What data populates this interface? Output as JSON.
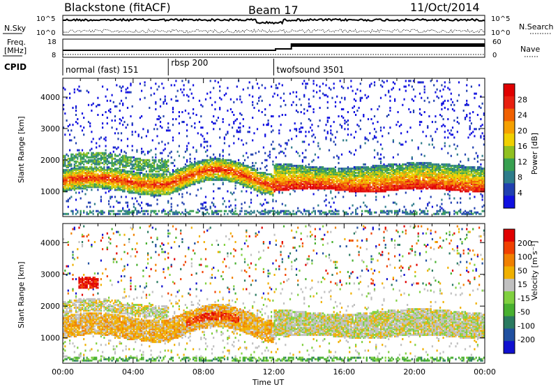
{
  "header": {
    "station": "Blackstone (fitACF)",
    "beam": "Beam 17",
    "date": "11/Oct/2014"
  },
  "left_labels": {
    "nsky": "N.Sky",
    "freq_line1": "Freq.",
    "freq_line2": "[MHz]",
    "cpid": "CPID"
  },
  "right_labels": {
    "nsearch": "N.Search",
    "nave": "Nave"
  },
  "noise_panel": {
    "left_ticks": [
      "10^5",
      "10^0"
    ],
    "right_ticks": [
      "10^5",
      "10^0"
    ]
  },
  "freq_panel": {
    "left_ticks": [
      "18",
      "8"
    ],
    "right_ticks": [
      "60",
      "0"
    ]
  },
  "cpid_panel": {
    "modes": [
      {
        "label": "normal (fast) 151",
        "start_hour": 0
      },
      {
        "label": "rbsp 200",
        "start_hour": 6
      },
      {
        "label": "twofsound 3501",
        "start_hour": 12
      }
    ]
  },
  "chart_data": [
    {
      "type": "heatmap",
      "name": "power-panel",
      "ylabel": "Slant Range [km]",
      "ylim": [
        200,
        4600
      ],
      "yticks": [
        "1000",
        "2000",
        "3000",
        "4000"
      ],
      "xlim": [
        0,
        24
      ],
      "colorbar": {
        "label": "Power [dB]",
        "ticks": [
          "4",
          "8",
          "12",
          "16",
          "20",
          "24",
          "28"
        ],
        "colors": [
          "#1010e0",
          "#2040b0",
          "#2e7c8a",
          "#38a050",
          "#90c020",
          "#f0d000",
          "#f5a000",
          "#f06000",
          "#e82010",
          "#e00000"
        ]
      }
    },
    {
      "type": "heatmap",
      "name": "velocity-panel",
      "ylabel": "Slant Range [km]",
      "ylim": [
        200,
        4600
      ],
      "yticks": [
        "1000",
        "2000",
        "3000",
        "4000"
      ],
      "xlim": [
        0,
        24
      ],
      "xlabel": "Time UT",
      "xticks": [
        "00:00",
        "04:00",
        "08:00",
        "12:00",
        "16:00",
        "20:00",
        "00:00"
      ],
      "colorbar": {
        "label": "Velocity [m s⁻¹]",
        "ticks": [
          "200",
          "100",
          "50",
          "15",
          "-15",
          "-50",
          "-100",
          "-200"
        ],
        "colors": [
          "#1010d0",
          "#2050a0",
          "#2a7a60",
          "#48b030",
          "#80d040",
          "#c0c0c0",
          "#f0b000",
          "#f08000",
          "#f04000",
          "#e00000"
        ]
      }
    }
  ]
}
